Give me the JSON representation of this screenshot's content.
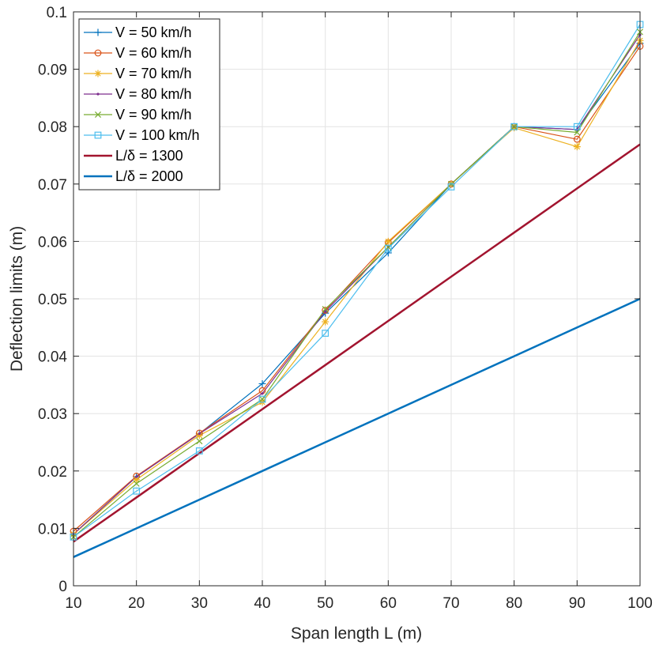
{
  "chart_data": {
    "type": "line",
    "xlabel": "Span length L (m)",
    "ylabel": "Deflection limits (m)",
    "xlim": [
      10,
      100
    ],
    "ylim": [
      0,
      0.1
    ],
    "x_ticks": [
      "10",
      "20",
      "30",
      "40",
      "50",
      "60",
      "70",
      "80",
      "90",
      "100"
    ],
    "y_ticks": [
      "0",
      "0.01",
      "0.02",
      "0.03",
      "0.04",
      "0.05",
      "0.06",
      "0.07",
      "0.08",
      "0.09",
      "0.1"
    ],
    "grid": true,
    "legend_position": "top-left",
    "x": [
      10,
      20,
      30,
      40,
      50,
      60,
      70,
      80,
      90,
      100
    ],
    "series": [
      {
        "name": "V = 50 km/h",
        "color": "#0072BD",
        "marker": "plus",
        "values": [
          0.009,
          0.019,
          0.0265,
          0.0352,
          0.0475,
          0.058,
          0.07,
          0.08,
          0.0795,
          0.0945
        ]
      },
      {
        "name": "V = 60 km/h",
        "color": "#D95319",
        "marker": "circle",
        "values": [
          0.0095,
          0.0191,
          0.0266,
          0.034,
          0.048,
          0.0598,
          0.07,
          0.08,
          0.0778,
          0.094
        ]
      },
      {
        "name": "V = 70 km/h",
        "color": "#EDB120",
        "marker": "asterisk",
        "values": [
          0.009,
          0.0185,
          0.0262,
          0.032,
          0.046,
          0.06,
          0.07,
          0.0798,
          0.0765,
          0.095
        ]
      },
      {
        "name": "V = 80 km/h",
        "color": "#7E2F8E",
        "marker": "point",
        "values": [
          0.009,
          0.019,
          0.0265,
          0.0335,
          0.0478,
          0.059,
          0.07,
          0.08,
          0.0795,
          0.096
        ]
      },
      {
        "name": "V = 90 km/h",
        "color": "#77AC30",
        "marker": "cross",
        "values": [
          0.0085,
          0.0178,
          0.0252,
          0.0325,
          0.0482,
          0.059,
          0.07,
          0.08,
          0.079,
          0.0965
        ]
      },
      {
        "name": "V = 100 km/h",
        "color": "#4DBEEE",
        "marker": "square",
        "values": [
          0.0085,
          0.0165,
          0.0235,
          0.0325,
          0.044,
          0.0588,
          0.0695,
          0.08,
          0.08,
          0.0978
        ]
      },
      {
        "name": "L/δ = 1300",
        "color": "#A2142F",
        "marker": "none",
        "line_width": 2.5,
        "values": [
          0.00769,
          0.01538,
          0.02308,
          0.03077,
          0.03846,
          0.04615,
          0.05385,
          0.06154,
          0.06923,
          0.07692
        ]
      },
      {
        "name": "L/δ = 2000",
        "color": "#0072BD",
        "marker": "none",
        "line_width": 2.5,
        "values": [
          0.005,
          0.01,
          0.015,
          0.02,
          0.025,
          0.03,
          0.035,
          0.04,
          0.045,
          0.05
        ]
      }
    ]
  }
}
